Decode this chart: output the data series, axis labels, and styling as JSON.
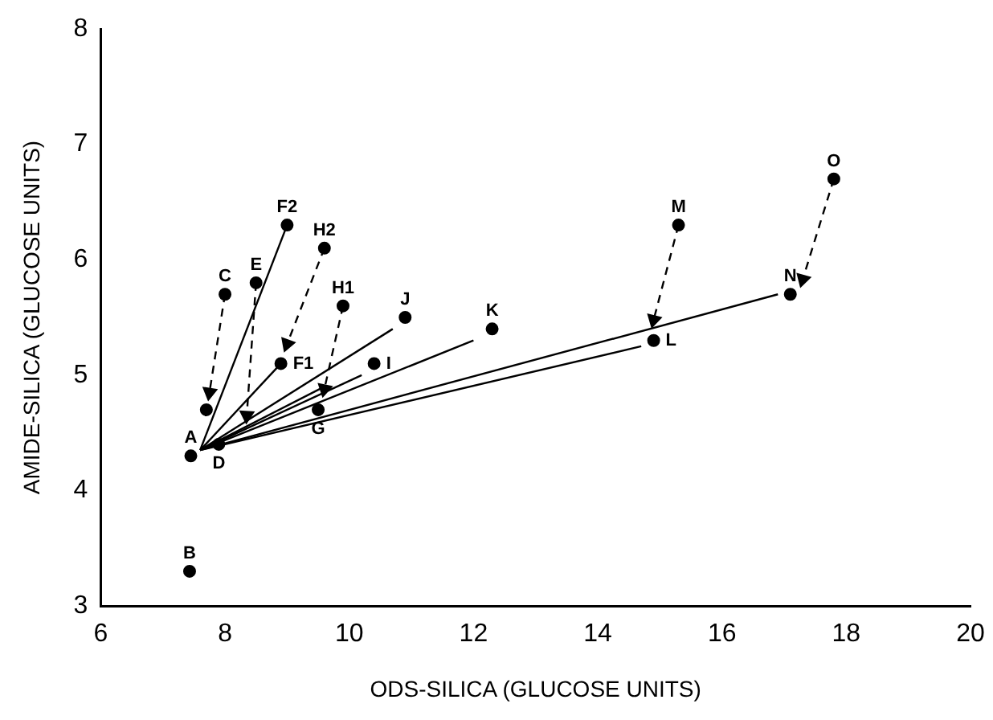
{
  "chart_data": {
    "type": "scatter",
    "xlabel": "ODS-SILICA (GLUCOSE UNITS)",
    "ylabel": "AMIDE-SILICA (GLUCOSE UNITS)",
    "xlim": [
      6,
      20
    ],
    "xticks": [
      6,
      8,
      10,
      12,
      14,
      16,
      18,
      20
    ],
    "ylim": [
      3,
      8
    ],
    "yticks": [
      3,
      4,
      5,
      6,
      7,
      8
    ],
    "grid": false,
    "legend": false,
    "marker": "circle",
    "series": [
      {
        "color": "#000000",
        "x": [
          7.45,
          7.43,
          8.0,
          8.5,
          9.0,
          9.6,
          9.9,
          10.9,
          10.4,
          8.9,
          9.5,
          7.9,
          7.7,
          12.3,
          15.3,
          14.9,
          17.1,
          17.8
        ],
        "values": [
          4.3,
          3.3,
          5.7,
          5.8,
          6.3,
          6.1,
          5.6,
          5.5,
          5.1,
          5.1,
          4.7,
          4.4,
          4.7,
          5.4,
          6.3,
          5.3,
          5.7,
          6.7
        ]
      },
      {
        "type": "line",
        "marker": "none",
        "color": "#000000",
        "line_style": "solid",
        "x": [
          7.6,
          9.0
        ],
        "values": [
          4.35,
          6.3
        ]
      },
      {
        "type": "line",
        "marker": "none",
        "color": "#000000",
        "line_style": "solid",
        "x": [
          7.6,
          8.9
        ],
        "values": [
          4.35,
          5.1
        ]
      },
      {
        "type": "line",
        "marker": "none",
        "color": "#000000",
        "line_style": "solid",
        "x": [
          7.6,
          10.7
        ],
        "values": [
          4.35,
          5.4
        ]
      },
      {
        "type": "line",
        "marker": "none",
        "color": "#000000",
        "line_style": "solid",
        "x": [
          7.6,
          10.2
        ],
        "values": [
          4.35,
          5.0
        ]
      },
      {
        "type": "line",
        "marker": "none",
        "color": "#000000",
        "line_style": "solid",
        "x": [
          7.6,
          9.6
        ],
        "values": [
          4.35,
          4.9
        ]
      },
      {
        "type": "line",
        "marker": "none",
        "color": "#000000",
        "line_style": "solid",
        "x": [
          7.6,
          12.0
        ],
        "values": [
          4.35,
          5.3
        ]
      },
      {
        "type": "line",
        "marker": "none",
        "color": "#000000",
        "line_style": "solid",
        "x": [
          7.6,
          14.7
        ],
        "values": [
          4.35,
          5.25
        ]
      },
      {
        "type": "line",
        "marker": "none",
        "color": "#000000",
        "line_style": "solid",
        "x": [
          7.6,
          16.9
        ],
        "values": [
          4.35,
          5.7
        ]
      },
      {
        "type": "line",
        "marker": "triangle",
        "color": "#000000",
        "line_style": "dashed",
        "x": [
          8.0,
          7.75
        ],
        "values": [
          5.7,
          4.85
        ]
      },
      {
        "type": "line",
        "marker": "triangle",
        "color": "#000000",
        "line_style": "dashed",
        "x": [
          8.5,
          8.35
        ],
        "values": [
          5.8,
          4.65
        ]
      },
      {
        "type": "line",
        "marker": "triangle",
        "color": "#000000",
        "line_style": "dashed",
        "x": [
          9.6,
          9.0
        ],
        "values": [
          6.1,
          5.27
        ]
      },
      {
        "type": "line",
        "marker": "triangle",
        "color": "#000000",
        "line_style": "dashed",
        "x": [
          9.9,
          9.6
        ],
        "values": [
          5.6,
          4.88
        ]
      },
      {
        "type": "line",
        "marker": "triangle",
        "color": "#000000",
        "line_style": "dashed",
        "x": [
          15.3,
          14.9
        ],
        "values": [
          6.3,
          5.48
        ]
      },
      {
        "type": "line",
        "marker": "triangle",
        "color": "#000000",
        "line_style": "dashed",
        "x": [
          17.8,
          17.3
        ],
        "values": [
          6.7,
          5.83
        ]
      }
    ],
    "annotations": [
      {
        "text": "A",
        "x": 7.45,
        "y": 4.3
      },
      {
        "text": "B",
        "x": 7.43,
        "y": 3.3
      },
      {
        "text": "C",
        "x": 8.0,
        "y": 5.7
      },
      {
        "text": "E",
        "x": 8.5,
        "y": 5.8
      },
      {
        "text": "F2",
        "x": 9.0,
        "y": 6.3
      },
      {
        "text": "H2",
        "x": 9.6,
        "y": 6.1
      },
      {
        "text": "H1",
        "x": 9.9,
        "y": 5.6
      },
      {
        "text": "J",
        "x": 10.9,
        "y": 5.5
      },
      {
        "text": "I",
        "x": 10.4,
        "y": 5.1
      },
      {
        "text": "F1",
        "x": 8.9,
        "y": 5.1
      },
      {
        "text": "G",
        "x": 9.5,
        "y": 4.7
      },
      {
        "text": "D",
        "x": 7.9,
        "y": 4.4
      },
      {
        "text": "K",
        "x": 12.3,
        "y": 5.4
      },
      {
        "text": "M",
        "x": 15.3,
        "y": 6.3
      },
      {
        "text": "L",
        "x": 14.9,
        "y": 5.3
      },
      {
        "text": "N",
        "x": 17.1,
        "y": 5.7
      },
      {
        "text": "O",
        "x": 17.8,
        "y": 6.7
      }
    ]
  }
}
